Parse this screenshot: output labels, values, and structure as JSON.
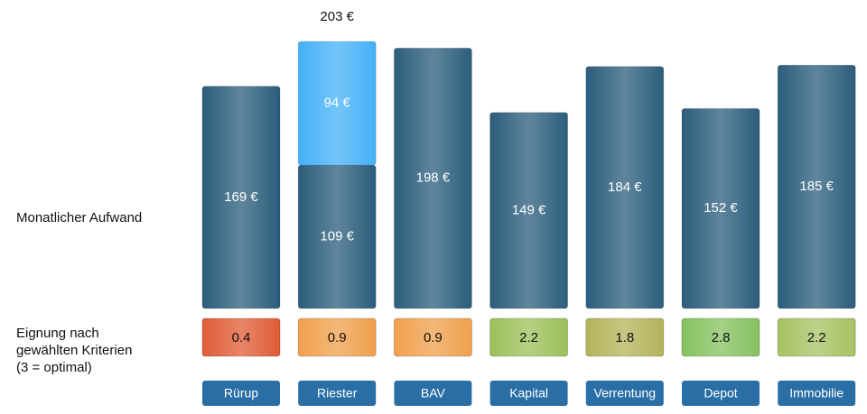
{
  "chart_data": {
    "type": "stacked_bar",
    "categories": [
      "Rürup",
      "Riester",
      "BAV",
      "Kapital",
      "Verrentung",
      "Depot",
      "Immobilie"
    ],
    "series": [
      {
        "color": "#2b5d7c",
        "values": [
          169,
          109,
          198,
          149,
          184,
          152,
          185
        ],
        "value_labels": [
          "169 €",
          "109 €",
          "198 €",
          "149 €",
          "184 €",
          "152 €",
          "185 €"
        ]
      },
      {
        "color": "#45b1f7",
        "values": [
          null,
          94,
          null,
          null,
          null,
          null,
          null
        ],
        "value_labels": [
          null,
          "94 €",
          null,
          null,
          null,
          null,
          null
        ]
      }
    ],
    "totals": [
      null,
      203,
      null,
      null,
      null,
      null,
      null
    ],
    "total_labels": [
      null,
      "203 €",
      null,
      null,
      null,
      null,
      null
    ],
    "row_labels": {
      "cost": "Monatlicher Aufwand",
      "score": [
        "Eignung nach",
        "gewählten Kriterien",
        "(3 = optimal)"
      ]
    },
    "scores": [
      0.4,
      0.9,
      0.9,
      2.2,
      1.8,
      2.8,
      2.2
    ],
    "score_colors": [
      "#e05c36",
      "#f0a04c",
      "#f0a04c",
      "#9cc05a",
      "#b4b35a",
      "#86c260",
      "#a7c262"
    ],
    "button_color": "#2a6ea6"
  }
}
